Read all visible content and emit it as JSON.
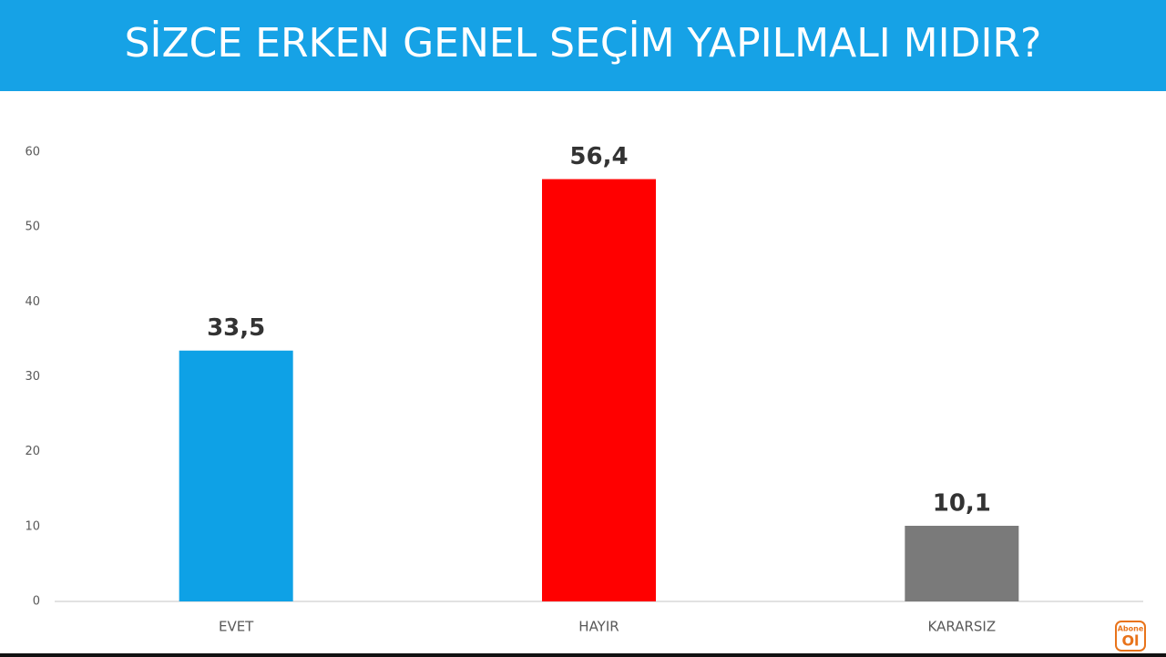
{
  "chart_data": {
    "type": "bar",
    "title": "SİZCE ERKEN GENEL SEÇİM YAPILMALI MIDIR?",
    "categories": [
      "EVET",
      "HAYIR",
      "KARARSIZ"
    ],
    "values": [
      33.5,
      56.4,
      10.1
    ],
    "value_labels": [
      "33,5",
      "56,4",
      "10,1"
    ],
    "colors": [
      "#0ea1e6",
      "#ff0000",
      "#7a7a7a"
    ],
    "ylim": [
      0,
      60
    ],
    "yticks": [
      0,
      10,
      20,
      30,
      40,
      50,
      60
    ],
    "grid": false,
    "watermark": [
      "Abone",
      "Ol"
    ]
  }
}
